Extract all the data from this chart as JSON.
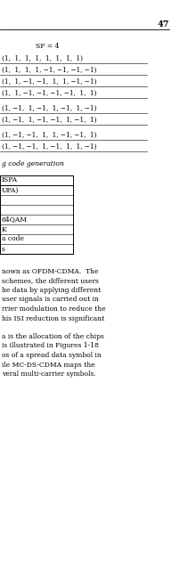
{
  "page_number": "47",
  "sf_label": "SF = 4",
  "spreading_codes": [
    "(1,  1,  1,  1,  1,  1,  1,  1)",
    "(1,  1,  1,  1, −1, −1, −1, −1)",
    "(1,  1, −1, −1,  1,  1, −1, −1)",
    "(1,  1, −1, −1, −1, −1,  1,  1)",
    "(1, −1,  1, −1,  1, −1,  1, −1)",
    "(1, −1,  1, −1, −1,  1, −1,  1)",
    "(1, −1, −1,  1,  1, −1, −1,  1)",
    "(1, −1, −1,  1, −1,  1,  1, −1)"
  ],
  "caption_text": "g code generation",
  "table_header": "ISPA",
  "table_rows": [
    "UPA)",
    "",
    "",
    "64QAM",
    "K",
    "a code",
    "s"
  ],
  "body_text_1": [
    "nown as OFDM-CDMA.  The",
    "schemes, the different users",
    "he data by applying different",
    "user signals is carried out in",
    "rrier modulation to reduce the",
    "his ISI reduction is significant"
  ],
  "body_text_2": [
    "a is the allocation of the chips",
    "is illustrated in Figures 1-18",
    "os of a spread data symbol in",
    "ile MC-DS-CDMA maps the",
    "veral multi-carrier symbols."
  ],
  "bg_color": "#ffffff",
  "text_color": "#000000",
  "line_color": "#000000",
  "fs": 5.5,
  "fs_pagenum": 7.0
}
